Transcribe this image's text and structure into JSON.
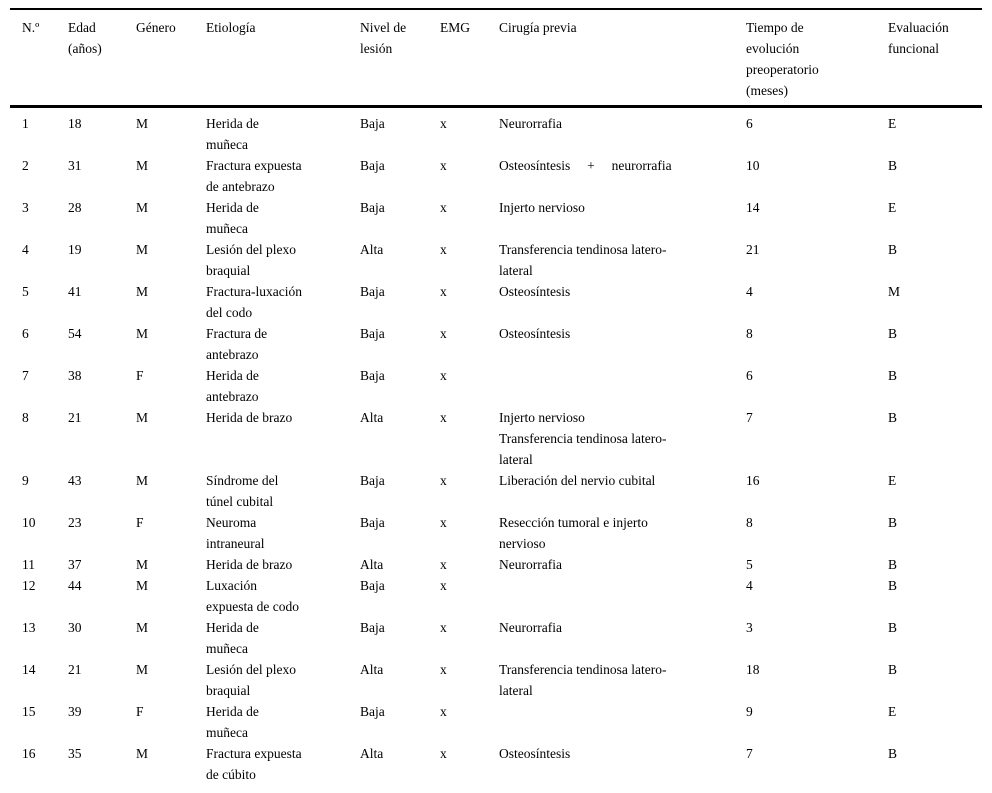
{
  "table": {
    "headers": [
      "N.º",
      "Edad\n(años)",
      "Género",
      "Etiología",
      "Nivel de\nlesión",
      "EMG",
      "Cirugía previa",
      "Tiempo de\nevolución\npreoperatorio\n(meses)",
      "Evaluación\nfuncional"
    ],
    "column_keys": [
      "numero",
      "edad",
      "genero",
      "etiologia",
      "nivel-lesion",
      "emg",
      "cirugia-previa",
      "tiempo-evolucion",
      "evaluacion-funcional"
    ],
    "rows": [
      [
        "1",
        "18",
        "M",
        "Herida de\nmuñeca",
        "Baja",
        "x",
        "Neurorrafia",
        "6",
        "E"
      ],
      [
        "2",
        "31",
        "M",
        "Fractura expuesta\nde antebrazo",
        "Baja",
        "x",
        "Osteosíntesis     +     neurorrafia",
        "10",
        "B"
      ],
      [
        "3",
        "28",
        "M",
        "Herida de\nmuñeca",
        "Baja",
        "x",
        "Injerto nervioso",
        "14",
        "E"
      ],
      [
        "4",
        "19",
        "M",
        "Lesión del plexo\nbraquial",
        "Alta",
        "x",
        "Transferencia tendinosa latero-\nlateral",
        "21",
        "B"
      ],
      [
        "5",
        "41",
        "M",
        "Fractura-luxación\ndel codo",
        "Baja",
        "x",
        "Osteosíntesis",
        "4",
        "M"
      ],
      [
        "6",
        "54",
        "M",
        "Fractura de\nantebrazo",
        "Baja",
        "x",
        "Osteosíntesis",
        "8",
        "B"
      ],
      [
        "7",
        "38",
        "F",
        "Herida de\nantebrazo",
        "Baja",
        "x",
        "",
        "6",
        "B"
      ],
      [
        "8",
        "21",
        "M",
        "Herida de brazo",
        "Alta",
        "x",
        "Injerto nervioso\nTransferencia tendinosa latero-\nlateral",
        "7",
        "B"
      ],
      [
        "9",
        "43",
        "M",
        "Síndrome del\ntúnel cubital",
        "Baja",
        "x",
        "Liberación del nervio cubital",
        "16",
        "E"
      ],
      [
        "10",
        "23",
        "F",
        "Neuroma\nintraneural",
        "Baja",
        "x",
        "Resección tumoral e injerto\nnervioso",
        "8",
        "B"
      ],
      [
        "11",
        "37",
        "M",
        "Herida de brazo",
        "Alta",
        "x",
        "Neurorrafia",
        "5",
        "B"
      ],
      [
        "12",
        "44",
        "M",
        "Luxación\nexpuesta de codo",
        "Baja",
        "x",
        "",
        "4",
        "B"
      ],
      [
        "13",
        "30",
        "M",
        "Herida de\nmuñeca",
        "Baja",
        "x",
        "Neurorrafia",
        "3",
        "B"
      ],
      [
        "14",
        "21",
        "M",
        "Lesión del plexo\nbraquial",
        "Alta",
        "x",
        "Transferencia tendinosa latero-\nlateral",
        "18",
        "B"
      ],
      [
        "15",
        "39",
        "F",
        "Herida de\nmuñeca",
        "Baja",
        "x",
        "",
        "9",
        "E"
      ],
      [
        "16",
        "35",
        "M",
        "Fractura expuesta\nde cúbito",
        "Alta",
        "x",
        "Osteosíntesis",
        "7",
        "B"
      ]
    ]
  }
}
